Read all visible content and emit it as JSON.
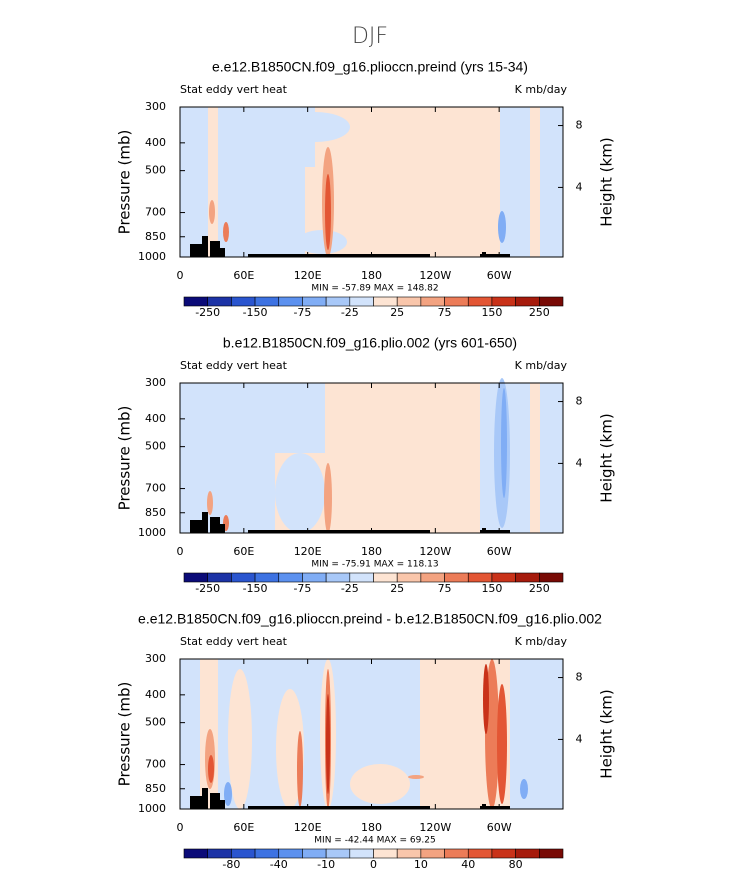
{
  "title": "DJF",
  "colorbar_colors": [
    "#0b0b78",
    "#1c33a6",
    "#2a55cf",
    "#3d72e2",
    "#5c91ef",
    "#80adf5",
    "#a8c8f8",
    "#d2e3fb",
    "#fde4d3",
    "#f9c6ab",
    "#f3a381",
    "#ec7c58",
    "#e35634",
    "#c93219",
    "#a61b0c",
    "#780a05"
  ],
  "chart_data": [
    {
      "type": "contour",
      "title": "e.e12.B1850CN.f09_g16.plioccn.preind (yrs 15-34)",
      "left_label": "Stat eddy vert heat",
      "right_label": "K mb/day",
      "y_label": "Pressure (mb)",
      "y2_label": "Height (km)",
      "xlim": [
        0,
        360
      ],
      "xticks": [
        0,
        {
          "value": 60,
          "label": "60E"
        },
        {
          "value": 120,
          "label": "120E"
        },
        180,
        {
          "value": 240,
          "label": "120W"
        },
        {
          "value": 300,
          "label": "60W"
        }
      ],
      "ylim": [
        1000,
        300
      ],
      "yticks": [
        300,
        400,
        500,
        700,
        850,
        1000
      ],
      "log_y": true,
      "y2lim": [
        -0.5,
        9.2
      ],
      "y2ticks": [
        4,
        8
      ],
      "stats": "MIN = -57.89   MAX = 148.82",
      "colorbar_labels": [
        -250,
        -150,
        -75,
        -25,
        25,
        75,
        150,
        250
      ]
    },
    {
      "type": "contour",
      "title": "b.e12.B1850CN.f09_g16.plio.002 (yrs 601-650)",
      "left_label": "Stat eddy vert heat",
      "right_label": "K mb/day",
      "y_label": "Pressure (mb)",
      "y2_label": "Height (km)",
      "xlim": [
        0,
        360
      ],
      "xticks": [
        0,
        {
          "value": 60,
          "label": "60E"
        },
        {
          "value": 120,
          "label": "120E"
        },
        180,
        {
          "value": 240,
          "label": "120W"
        },
        {
          "value": 300,
          "label": "60W"
        }
      ],
      "ylim": [
        1000,
        300
      ],
      "yticks": [
        300,
        400,
        500,
        700,
        850,
        1000
      ],
      "log_y": true,
      "y2lim": [
        -0.5,
        9.2
      ],
      "y2ticks": [
        4,
        8
      ],
      "stats": "MIN = -75.91   MAX = 118.13",
      "colorbar_labels": [
        -250,
        -150,
        -75,
        -25,
        25,
        75,
        150,
        250
      ]
    },
    {
      "type": "contour",
      "title": "e.e12.B1850CN.f09_g16.plioccn.preind - b.e12.B1850CN.f09_g16.plio.002",
      "left_label": "Stat eddy vert heat",
      "right_label": "K mb/day",
      "y_label": "Pressure (mb)",
      "y2_label": "Height (km)",
      "xlim": [
        0,
        360
      ],
      "xticks": [
        0,
        {
          "value": 60,
          "label": "60E"
        },
        {
          "value": 120,
          "label": "120E"
        },
        180,
        {
          "value": 240,
          "label": "120W"
        },
        {
          "value": 300,
          "label": "60W"
        }
      ],
      "ylim": [
        1000,
        300
      ],
      "yticks": [
        300,
        400,
        500,
        700,
        850,
        1000
      ],
      "log_y": true,
      "y2lim": [
        -0.5,
        9.2
      ],
      "y2ticks": [
        4,
        8
      ],
      "stats": "MIN = -42.44   MAX = 69.25",
      "colorbar_labels": [
        -80,
        -40,
        -10,
        0,
        10,
        40,
        80
      ]
    }
  ]
}
